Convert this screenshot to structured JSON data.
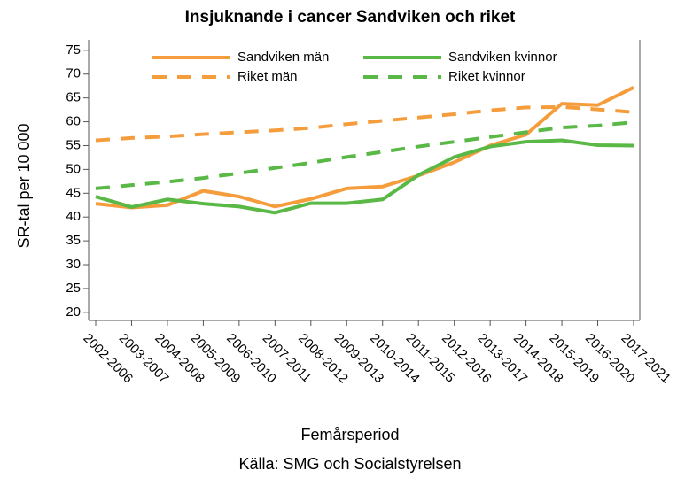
{
  "chart_data": {
    "type": "line",
    "title": "Insjuknande i cancer Sandviken och riket",
    "xlabel": "Femårsperiod",
    "ylabel": "SR-tal per 10 000",
    "source": "Källa: SMG och Socialstyrelsen",
    "categories": [
      "2002-2006",
      "2003-2007",
      "2004-2008",
      "2005-2009",
      "2006-2010",
      "2007-2011",
      "2008-2012",
      "2009-2013",
      "2010-2014",
      "2011-2015",
      "2012-2016",
      "2013-2017",
      "2014-2018",
      "2015-2019",
      "2016-2020",
      "2017-2021"
    ],
    "series": [
      {
        "name": "Sandviken män",
        "color": "#f59d3d",
        "dashed": false,
        "values": [
          42.8,
          42,
          42.5,
          45.5,
          44.3,
          42.2,
          43.8,
          46,
          46.4,
          48.7,
          51.5,
          55,
          57.3,
          63.8,
          63.5,
          67.2
        ]
      },
      {
        "name": "Sandviken kvinnor",
        "color": "#5ab946",
        "dashed": false,
        "values": [
          44.3,
          42.1,
          43.7,
          42.8,
          42.2,
          40.9,
          42.9,
          42.9,
          43.7,
          48.8,
          52.6,
          54.8,
          55.8,
          56.1,
          55.1,
          55
        ]
      },
      {
        "name": "Riket män",
        "color": "#f59d3d",
        "dashed": true,
        "values": [
          56.1,
          56.6,
          56.9,
          57.4,
          57.8,
          58.2,
          58.7,
          59.5,
          60.2,
          60.9,
          61.6,
          62.4,
          63,
          63.1,
          62.6,
          62
        ]
      },
      {
        "name": "Riket kvinnor",
        "color": "#5ab946",
        "dashed": true,
        "values": [
          46,
          46.7,
          47.4,
          48.2,
          49.2,
          50.3,
          51.4,
          52.6,
          53.7,
          54.8,
          55.8,
          56.8,
          57.8,
          58.8,
          59.2,
          59.9
        ]
      }
    ],
    "ylim": [
      18.3,
      77.2
    ],
    "yticks": [
      20,
      25,
      30,
      35,
      40,
      45,
      50,
      55,
      60,
      65,
      70,
      75
    ],
    "legend": "top"
  }
}
